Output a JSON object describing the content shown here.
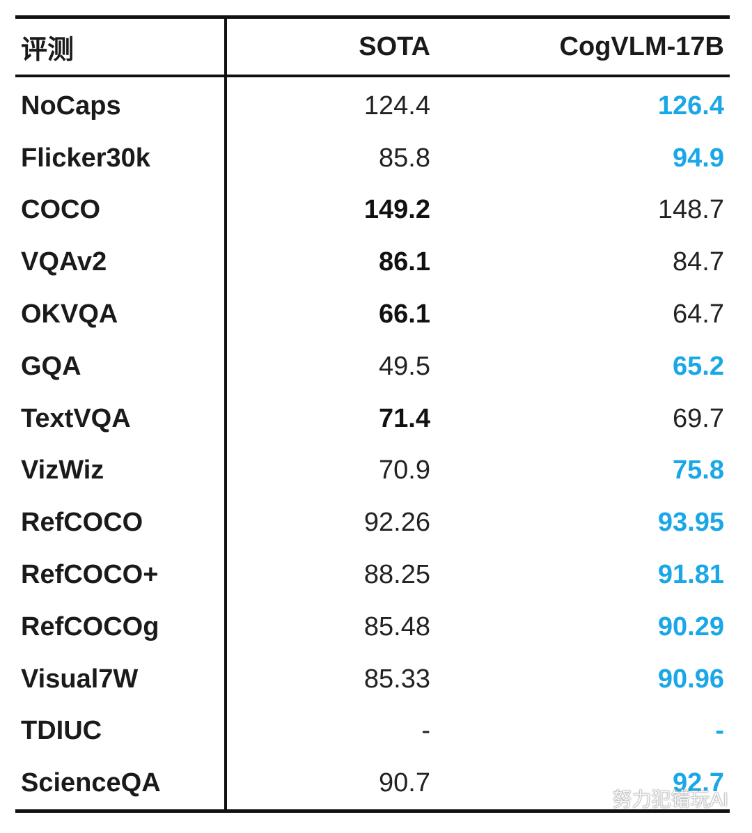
{
  "header": {
    "col_metric": "评测",
    "col_sota": "SOTA",
    "col_cog": "CogVLM-17B"
  },
  "rows": [
    {
      "name": "NoCaps",
      "sota": "124.4",
      "cog": "126.4",
      "sota_style": "num",
      "cog_style": "hl"
    },
    {
      "name": "Flicker30k",
      "sota": "85.8",
      "cog": "94.9",
      "sota_style": "num",
      "cog_style": "hl"
    },
    {
      "name": "COCO",
      "sota": "149.2",
      "cog": "148.7",
      "sota_style": "bold",
      "cog_style": "num"
    },
    {
      "name": "VQAv2",
      "sota": "86.1",
      "cog": "84.7",
      "sota_style": "bold",
      "cog_style": "num"
    },
    {
      "name": "OKVQA",
      "sota": "66.1",
      "cog": "64.7",
      "sota_style": "bold",
      "cog_style": "num"
    },
    {
      "name": "GQA",
      "sota": "49.5",
      "cog": "65.2",
      "sota_style": "num",
      "cog_style": "hl"
    },
    {
      "name": "TextVQA",
      "sota": "71.4",
      "cog": "69.7",
      "sota_style": "bold",
      "cog_style": "num"
    },
    {
      "name": "VizWiz",
      "sota": "70.9",
      "cog": "75.8",
      "sota_style": "num",
      "cog_style": "hl"
    },
    {
      "name": "RefCOCO",
      "sota": "92.26",
      "cog": "93.95",
      "sota_style": "num",
      "cog_style": "hl"
    },
    {
      "name": "RefCOCO+",
      "sota": "88.25",
      "cog": "91.81",
      "sota_style": "num",
      "cog_style": "hl"
    },
    {
      "name": "RefCOCOg",
      "sota": "85.48",
      "cog": "90.29",
      "sota_style": "num",
      "cog_style": "hl"
    },
    {
      "name": "Visual7W",
      "sota": "85.33",
      "cog": "90.96",
      "sota_style": "num",
      "cog_style": "hl"
    },
    {
      "name": "TDIUC",
      "sota": "-",
      "cog": "-",
      "sota_style": "num",
      "cog_style": "hl"
    },
    {
      "name": "ScienceQA",
      "sota": "90.7",
      "cog": "92.7",
      "sota_style": "num",
      "cog_style": "hl"
    }
  ],
  "colors": {
    "highlight": "#1aa7e8",
    "rule": "#111111"
  },
  "watermark": {
    "text": "努力犯错玩AI",
    "icon": "wechat-icon"
  }
}
